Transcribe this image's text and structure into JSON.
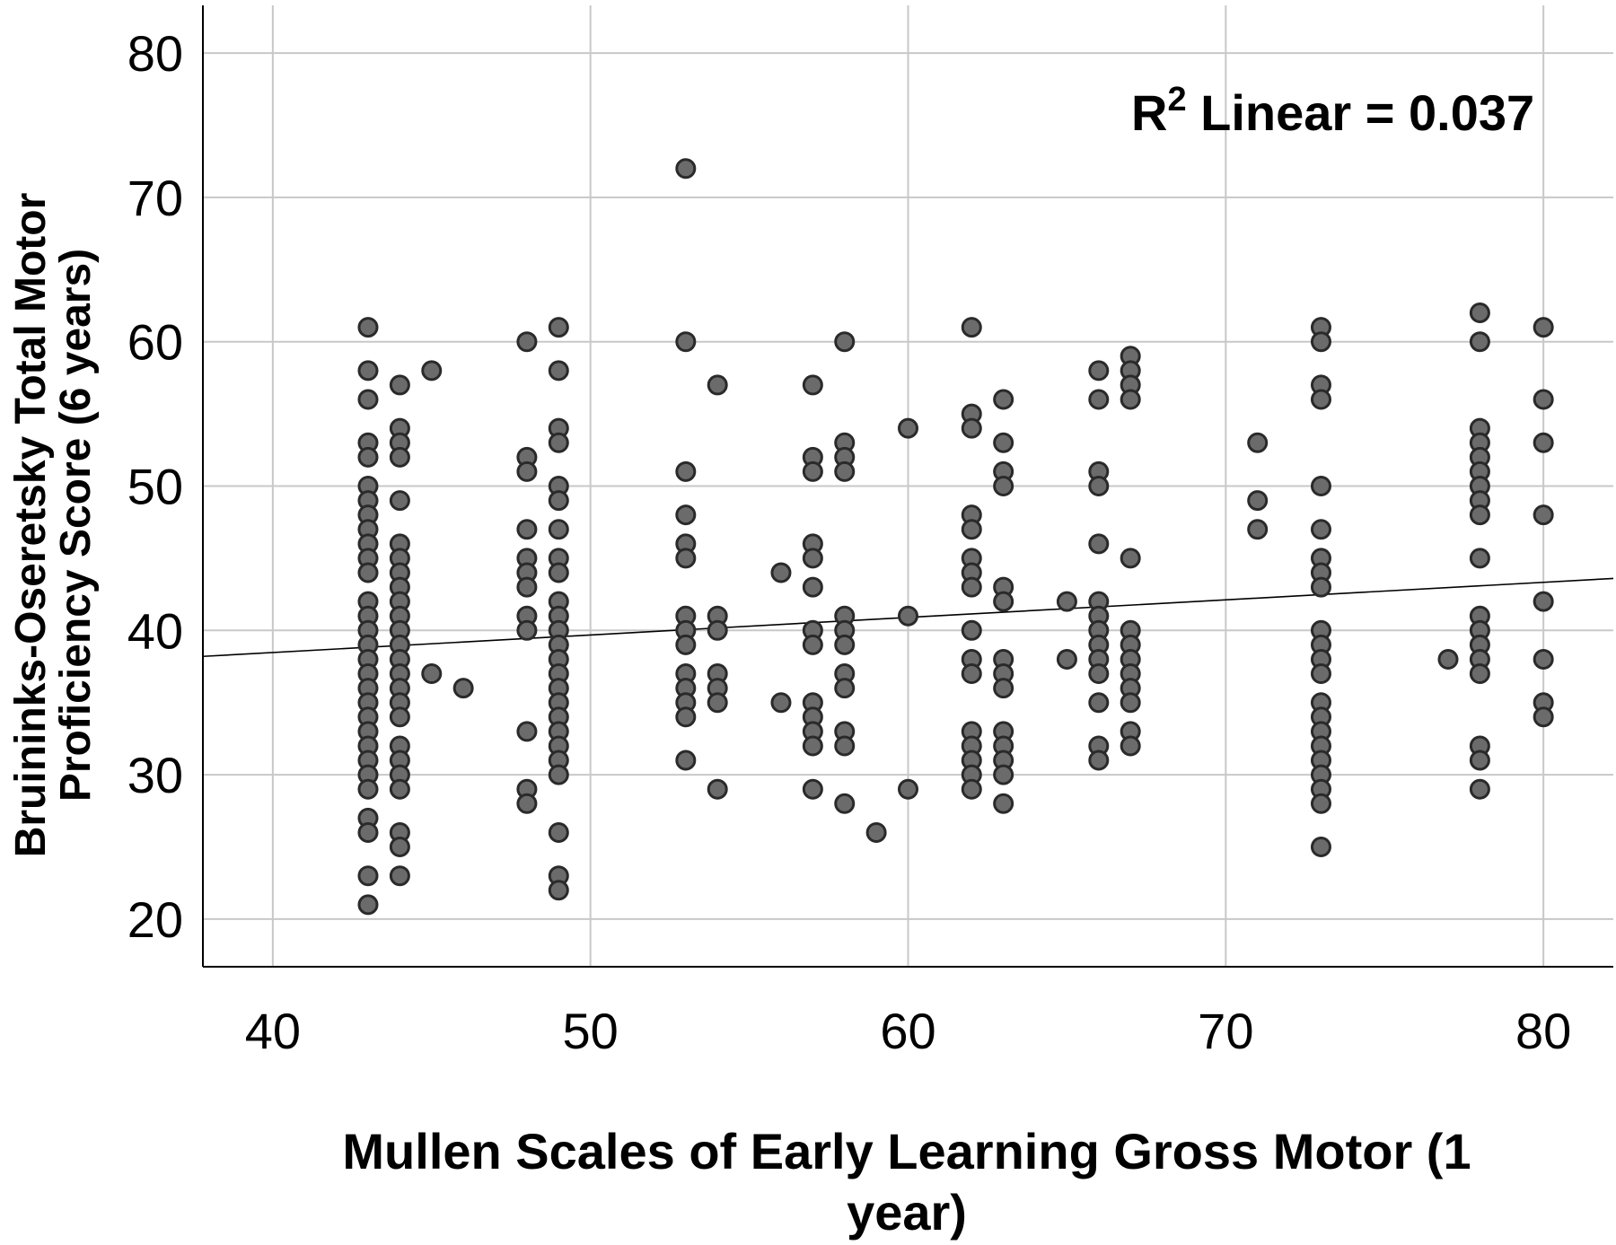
{
  "chart_data": {
    "type": "scatter",
    "title": "",
    "xlabel": "Mullen Scales of Early Learning Gross Motor (1 year)",
    "xlabel_lines": [
      "Mullen Scales of Early Learning Gross Motor (1",
      "year)"
    ],
    "ylabel": "Bruininks-Oseretsky Total Motor Proficiency Score (6 years)",
    "ylabel_lines": [
      "Bruininks-Oseretsky Total Motor",
      "Proficiency Score (6 years)"
    ],
    "xlim": [
      37.8,
      82.2
    ],
    "ylim": [
      16.7,
      83.3
    ],
    "x_ticks": [
      40,
      50,
      60,
      70,
      80
    ],
    "y_ticks": [
      20,
      30,
      40,
      50,
      60,
      70,
      80
    ],
    "grid": true,
    "annotation": {
      "prefix": "R",
      "sup": "2",
      "suffix": " Linear = 0.037"
    },
    "fit_line": {
      "x": [
        37.8,
        82.2
      ],
      "y": [
        38.2,
        43.6
      ]
    },
    "colors": {
      "point_fill": "#6b6b6b",
      "point_edge": "#2a2a2a",
      "grid": "#c8c8c8"
    },
    "points": [
      [
        43,
        61
      ],
      [
        43,
        58
      ],
      [
        43,
        56
      ],
      [
        43,
        53
      ],
      [
        43,
        52
      ],
      [
        43,
        50
      ],
      [
        43,
        49
      ],
      [
        43,
        48
      ],
      [
        43,
        47
      ],
      [
        43,
        46
      ],
      [
        43,
        45
      ],
      [
        43,
        44
      ],
      [
        43,
        42
      ],
      [
        43,
        41
      ],
      [
        43,
        40
      ],
      [
        43,
        39
      ],
      [
        43,
        38
      ],
      [
        43,
        37
      ],
      [
        43,
        36
      ],
      [
        43,
        35
      ],
      [
        43,
        34
      ],
      [
        43,
        33
      ],
      [
        43,
        32
      ],
      [
        43,
        31
      ],
      [
        43,
        30
      ],
      [
        43,
        29
      ],
      [
        43,
        27
      ],
      [
        43,
        26
      ],
      [
        43,
        23
      ],
      [
        43,
        21
      ],
      [
        44,
        57
      ],
      [
        44,
        54
      ],
      [
        44,
        53
      ],
      [
        44,
        52
      ],
      [
        44,
        49
      ],
      [
        44,
        46
      ],
      [
        44,
        45
      ],
      [
        44,
        44
      ],
      [
        44,
        43
      ],
      [
        44,
        42
      ],
      [
        44,
        41
      ],
      [
        44,
        40
      ],
      [
        44,
        39
      ],
      [
        44,
        38
      ],
      [
        44,
        37
      ],
      [
        44,
        36
      ],
      [
        44,
        35
      ],
      [
        44,
        34
      ],
      [
        44,
        32
      ],
      [
        44,
        31
      ],
      [
        44,
        30
      ],
      [
        44,
        29
      ],
      [
        44,
        26
      ],
      [
        44,
        25
      ],
      [
        44,
        23
      ],
      [
        45,
        58
      ],
      [
        45,
        37
      ],
      [
        46,
        36
      ],
      [
        48,
        60
      ],
      [
        48,
        52
      ],
      [
        48,
        51
      ],
      [
        48,
        47
      ],
      [
        48,
        45
      ],
      [
        48,
        44
      ],
      [
        48,
        43
      ],
      [
        48,
        41
      ],
      [
        48,
        40
      ],
      [
        48,
        33
      ],
      [
        48,
        29
      ],
      [
        48,
        28
      ],
      [
        49,
        61
      ],
      [
        49,
        58
      ],
      [
        49,
        54
      ],
      [
        49,
        53
      ],
      [
        49,
        50
      ],
      [
        49,
        49
      ],
      [
        49,
        47
      ],
      [
        49,
        45
      ],
      [
        49,
        44
      ],
      [
        49,
        42
      ],
      [
        49,
        41
      ],
      [
        49,
        40
      ],
      [
        49,
        39
      ],
      [
        49,
        38
      ],
      [
        49,
        37
      ],
      [
        49,
        36
      ],
      [
        49,
        35
      ],
      [
        49,
        34
      ],
      [
        49,
        33
      ],
      [
        49,
        32
      ],
      [
        49,
        31
      ],
      [
        49,
        30
      ],
      [
        49,
        26
      ],
      [
        49,
        23
      ],
      [
        49,
        22
      ],
      [
        53,
        72
      ],
      [
        53,
        60
      ],
      [
        53,
        51
      ],
      [
        53,
        48
      ],
      [
        53,
        46
      ],
      [
        53,
        45
      ],
      [
        53,
        41
      ],
      [
        53,
        40
      ],
      [
        53,
        39
      ],
      [
        53,
        37
      ],
      [
        53,
        36
      ],
      [
        53,
        35
      ],
      [
        53,
        34
      ],
      [
        53,
        31
      ],
      [
        54,
        57
      ],
      [
        54,
        41
      ],
      [
        54,
        40
      ],
      [
        54,
        37
      ],
      [
        54,
        36
      ],
      [
        54,
        35
      ],
      [
        54,
        29
      ],
      [
        56,
        44
      ],
      [
        56,
        35
      ],
      [
        57,
        57
      ],
      [
        57,
        52
      ],
      [
        57,
        51
      ],
      [
        57,
        46
      ],
      [
        57,
        45
      ],
      [
        57,
        43
      ],
      [
        57,
        40
      ],
      [
        57,
        39
      ],
      [
        57,
        35
      ],
      [
        57,
        34
      ],
      [
        57,
        33
      ],
      [
        57,
        32
      ],
      [
        57,
        29
      ],
      [
        58,
        60
      ],
      [
        58,
        53
      ],
      [
        58,
        52
      ],
      [
        58,
        51
      ],
      [
        58,
        41
      ],
      [
        58,
        40
      ],
      [
        58,
        39
      ],
      [
        58,
        37
      ],
      [
        58,
        36
      ],
      [
        58,
        33
      ],
      [
        58,
        32
      ],
      [
        58,
        28
      ],
      [
        59,
        26
      ],
      [
        60,
        54
      ],
      [
        60,
        41
      ],
      [
        60,
        29
      ],
      [
        62,
        61
      ],
      [
        62,
        55
      ],
      [
        62,
        54
      ],
      [
        62,
        48
      ],
      [
        62,
        47
      ],
      [
        62,
        45
      ],
      [
        62,
        44
      ],
      [
        62,
        43
      ],
      [
        62,
        40
      ],
      [
        62,
        38
      ],
      [
        62,
        37
      ],
      [
        62,
        33
      ],
      [
        62,
        32
      ],
      [
        62,
        31
      ],
      [
        62,
        30
      ],
      [
        62,
        29
      ],
      [
        63,
        56
      ],
      [
        63,
        53
      ],
      [
        63,
        51
      ],
      [
        63,
        50
      ],
      [
        63,
        43
      ],
      [
        63,
        42
      ],
      [
        63,
        38
      ],
      [
        63,
        37
      ],
      [
        63,
        36
      ],
      [
        63,
        33
      ],
      [
        63,
        32
      ],
      [
        63,
        31
      ],
      [
        63,
        30
      ],
      [
        63,
        28
      ],
      [
        65,
        42
      ],
      [
        65,
        38
      ],
      [
        66,
        58
      ],
      [
        66,
        56
      ],
      [
        66,
        51
      ],
      [
        66,
        50
      ],
      [
        66,
        46
      ],
      [
        66,
        42
      ],
      [
        66,
        41
      ],
      [
        66,
        40
      ],
      [
        66,
        39
      ],
      [
        66,
        38
      ],
      [
        66,
        37
      ],
      [
        66,
        35
      ],
      [
        66,
        32
      ],
      [
        66,
        31
      ],
      [
        67,
        59
      ],
      [
        67,
        58
      ],
      [
        67,
        57
      ],
      [
        67,
        56
      ],
      [
        67,
        45
      ],
      [
        67,
        40
      ],
      [
        67,
        39
      ],
      [
        67,
        38
      ],
      [
        67,
        37
      ],
      [
        67,
        36
      ],
      [
        67,
        35
      ],
      [
        67,
        33
      ],
      [
        67,
        32
      ],
      [
        71,
        53
      ],
      [
        71,
        49
      ],
      [
        71,
        47
      ],
      [
        73,
        61
      ],
      [
        73,
        60
      ],
      [
        73,
        57
      ],
      [
        73,
        56
      ],
      [
        73,
        50
      ],
      [
        73,
        47
      ],
      [
        73,
        45
      ],
      [
        73,
        44
      ],
      [
        73,
        43
      ],
      [
        73,
        40
      ],
      [
        73,
        39
      ],
      [
        73,
        38
      ],
      [
        73,
        37
      ],
      [
        73,
        35
      ],
      [
        73,
        34
      ],
      [
        73,
        33
      ],
      [
        73,
        32
      ],
      [
        73,
        31
      ],
      [
        73,
        30
      ],
      [
        73,
        29
      ],
      [
        73,
        28
      ],
      [
        73,
        25
      ],
      [
        77,
        38
      ],
      [
        78,
        62
      ],
      [
        78,
        60
      ],
      [
        78,
        54
      ],
      [
        78,
        53
      ],
      [
        78,
        52
      ],
      [
        78,
        51
      ],
      [
        78,
        50
      ],
      [
        78,
        49
      ],
      [
        78,
        48
      ],
      [
        78,
        45
      ],
      [
        78,
        41
      ],
      [
        78,
        40
      ],
      [
        78,
        39
      ],
      [
        78,
        38
      ],
      [
        78,
        37
      ],
      [
        78,
        32
      ],
      [
        78,
        31
      ],
      [
        78,
        29
      ],
      [
        80,
        61
      ],
      [
        80,
        56
      ],
      [
        80,
        53
      ],
      [
        80,
        48
      ],
      [
        80,
        42
      ],
      [
        80,
        38
      ],
      [
        80,
        35
      ],
      [
        80,
        34
      ]
    ]
  }
}
